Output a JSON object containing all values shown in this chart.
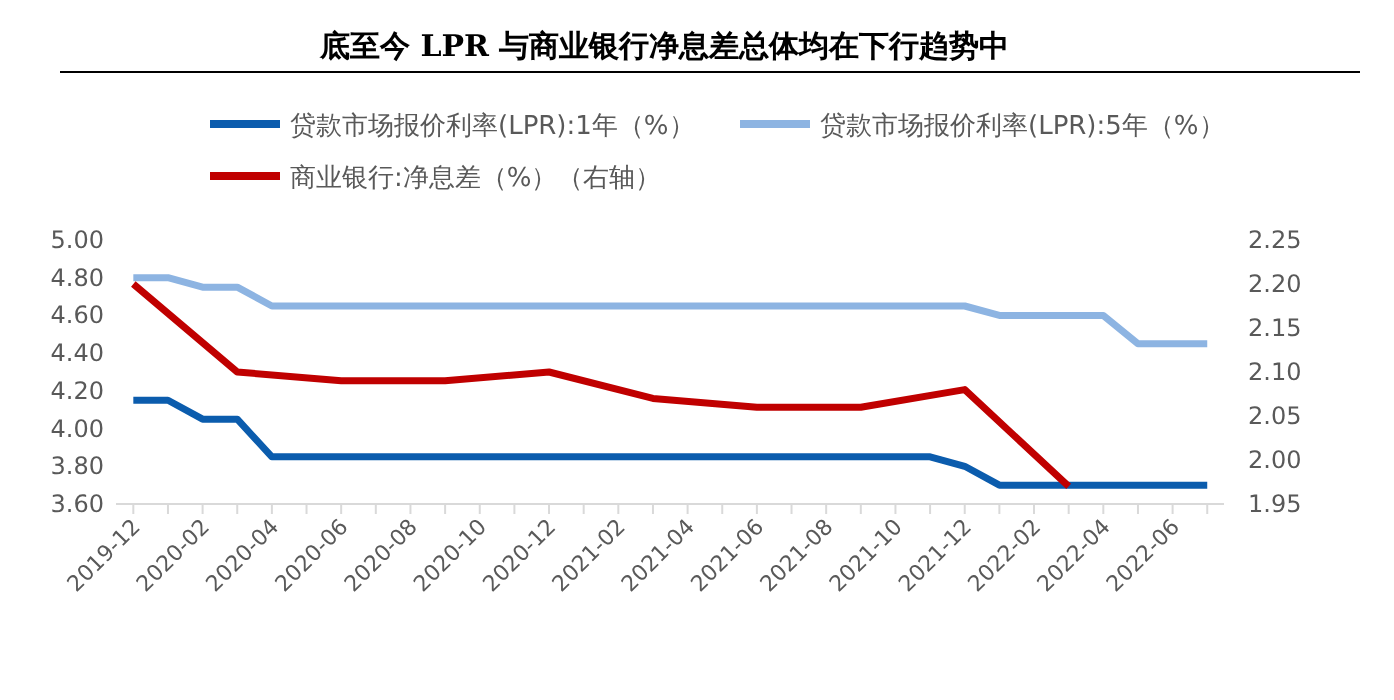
{
  "chart_data": {
    "type": "line",
    "title": "底至今 LPR 与商业银行净息差总体均在下行趋势中",
    "xlim": [
      "2019-11-16",
      "2022-07-16"
    ],
    "xticks": [
      "2019-12",
      "2020-02",
      "2020-04",
      "2020-06",
      "2020-08",
      "2020-10",
      "2020-12",
      "2021-02",
      "2021-04",
      "2021-06",
      "2021-08",
      "2021-10",
      "2021-12",
      "2022-02",
      "2022-04",
      "2022-06"
    ],
    "ylim": [
      3.6,
      5.0
    ],
    "yticks": [
      {
        "value": 3.6,
        "label": "3.60"
      },
      {
        "value": 3.8,
        "label": "3.80"
      },
      {
        "value": 4.0,
        "label": "4.00"
      },
      {
        "value": 4.2,
        "label": "4.20"
      },
      {
        "value": 4.4,
        "label": "4.40"
      },
      {
        "value": 4.6,
        "label": "4.60"
      },
      {
        "value": 4.8,
        "label": "4.80"
      },
      {
        "value": 5.0,
        "label": "5.00"
      }
    ],
    "y2lim": [
      1.95,
      2.25
    ],
    "y2ticks": [
      {
        "value": 1.95,
        "label": "1.95"
      },
      {
        "value": 2.0,
        "label": "2.00"
      },
      {
        "value": 2.05,
        "label": "2.05"
      },
      {
        "value": 2.1,
        "label": "2.10"
      },
      {
        "value": 2.15,
        "label": "2.15"
      },
      {
        "value": 2.2,
        "label": "2.20"
      },
      {
        "value": 2.25,
        "label": "2.25"
      }
    ],
    "legend": "top",
    "grid": false,
    "series": [
      {
        "name": "贷款市场报价利率(LPR):1年（%）",
        "color": "#0b5cad",
        "x": [
          "2019-12",
          "2020-01",
          "2020-02",
          "2020-03",
          "2020-04",
          "2021-11",
          "2021-12",
          "2022-01",
          "2022-07"
        ],
        "values": [
          4.15,
          4.15,
          4.05,
          4.05,
          3.85,
          3.85,
          3.8,
          3.7,
          3.7
        ]
      },
      {
        "name": "贷款市场报价利率(LPR):5年（%）",
        "color": "#8db4e2",
        "x": [
          "2019-12",
          "2020-01",
          "2020-02",
          "2020-03",
          "2020-04",
          "2021-12",
          "2022-01",
          "2022-04",
          "2022-05",
          "2022-07"
        ],
        "values": [
          4.8,
          4.8,
          4.75,
          4.75,
          4.65,
          4.65,
          4.6,
          4.6,
          4.45,
          4.45
        ]
      },
      {
        "name": "商业银行:净息差（%）（右轴）",
        "color": "#c00000",
        "axis": "y2",
        "x": [
          "2019-12",
          "2020-03",
          "2020-06",
          "2020-09",
          "2020-12",
          "2021-03",
          "2021-06",
          "2021-09",
          "2021-12",
          "2022-03"
        ],
        "values": [
          2.2,
          2.1,
          2.09,
          2.09,
          2.1,
          2.07,
          2.06,
          2.06,
          2.08,
          1.97
        ]
      }
    ]
  }
}
